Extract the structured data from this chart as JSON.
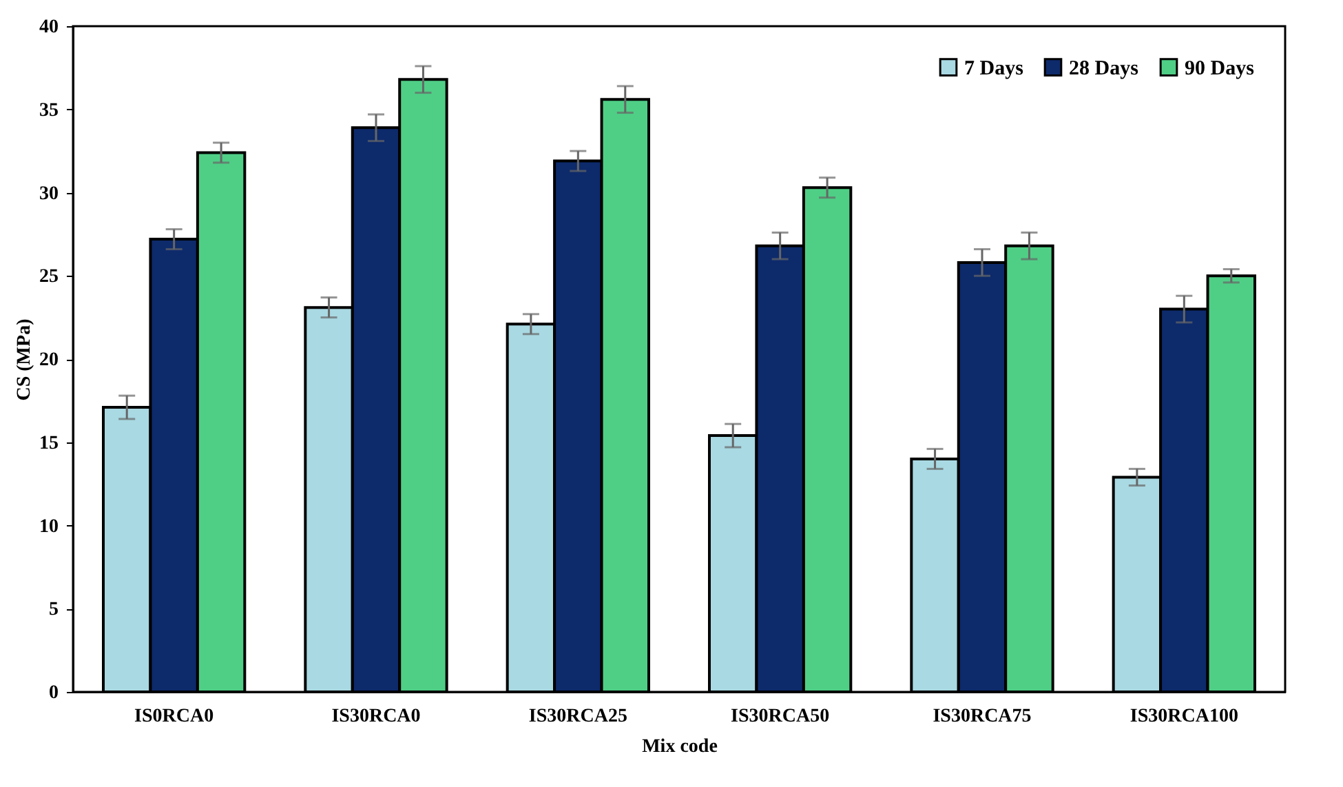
{
  "chart_data": {
    "type": "bar",
    "xlabel": "Mix code",
    "ylabel": "CS (MPa)",
    "categories": [
      "IS0RCA0",
      "IS30RCA0",
      "IS30RCA25",
      "IS30RCA50",
      "IS30RCA75",
      "IS30RCA100"
    ],
    "series": [
      {
        "name": "7 Days",
        "color": "#a9d9e3",
        "values": [
          17.1,
          23.1,
          22.1,
          15.4,
          14.0,
          12.9
        ],
        "errors": [
          0.7,
          0.6,
          0.6,
          0.7,
          0.6,
          0.5
        ]
      },
      {
        "name": "28 Days",
        "color": "#0d2a6b",
        "values": [
          27.2,
          33.9,
          31.9,
          26.8,
          25.8,
          23.0
        ],
        "errors": [
          0.6,
          0.8,
          0.6,
          0.8,
          0.8,
          0.8
        ]
      },
      {
        "name": "90 Days",
        "color": "#4fcf86",
        "values": [
          32.4,
          36.8,
          35.6,
          30.3,
          26.8,
          25.0
        ],
        "errors": [
          0.6,
          0.8,
          0.8,
          0.6,
          0.8,
          0.4
        ]
      }
    ],
    "ylim": [
      0,
      40
    ],
    "yticks": [
      0,
      5,
      10,
      15,
      20,
      25,
      30,
      35,
      40
    ],
    "grid": false,
    "legend": "top right"
  }
}
